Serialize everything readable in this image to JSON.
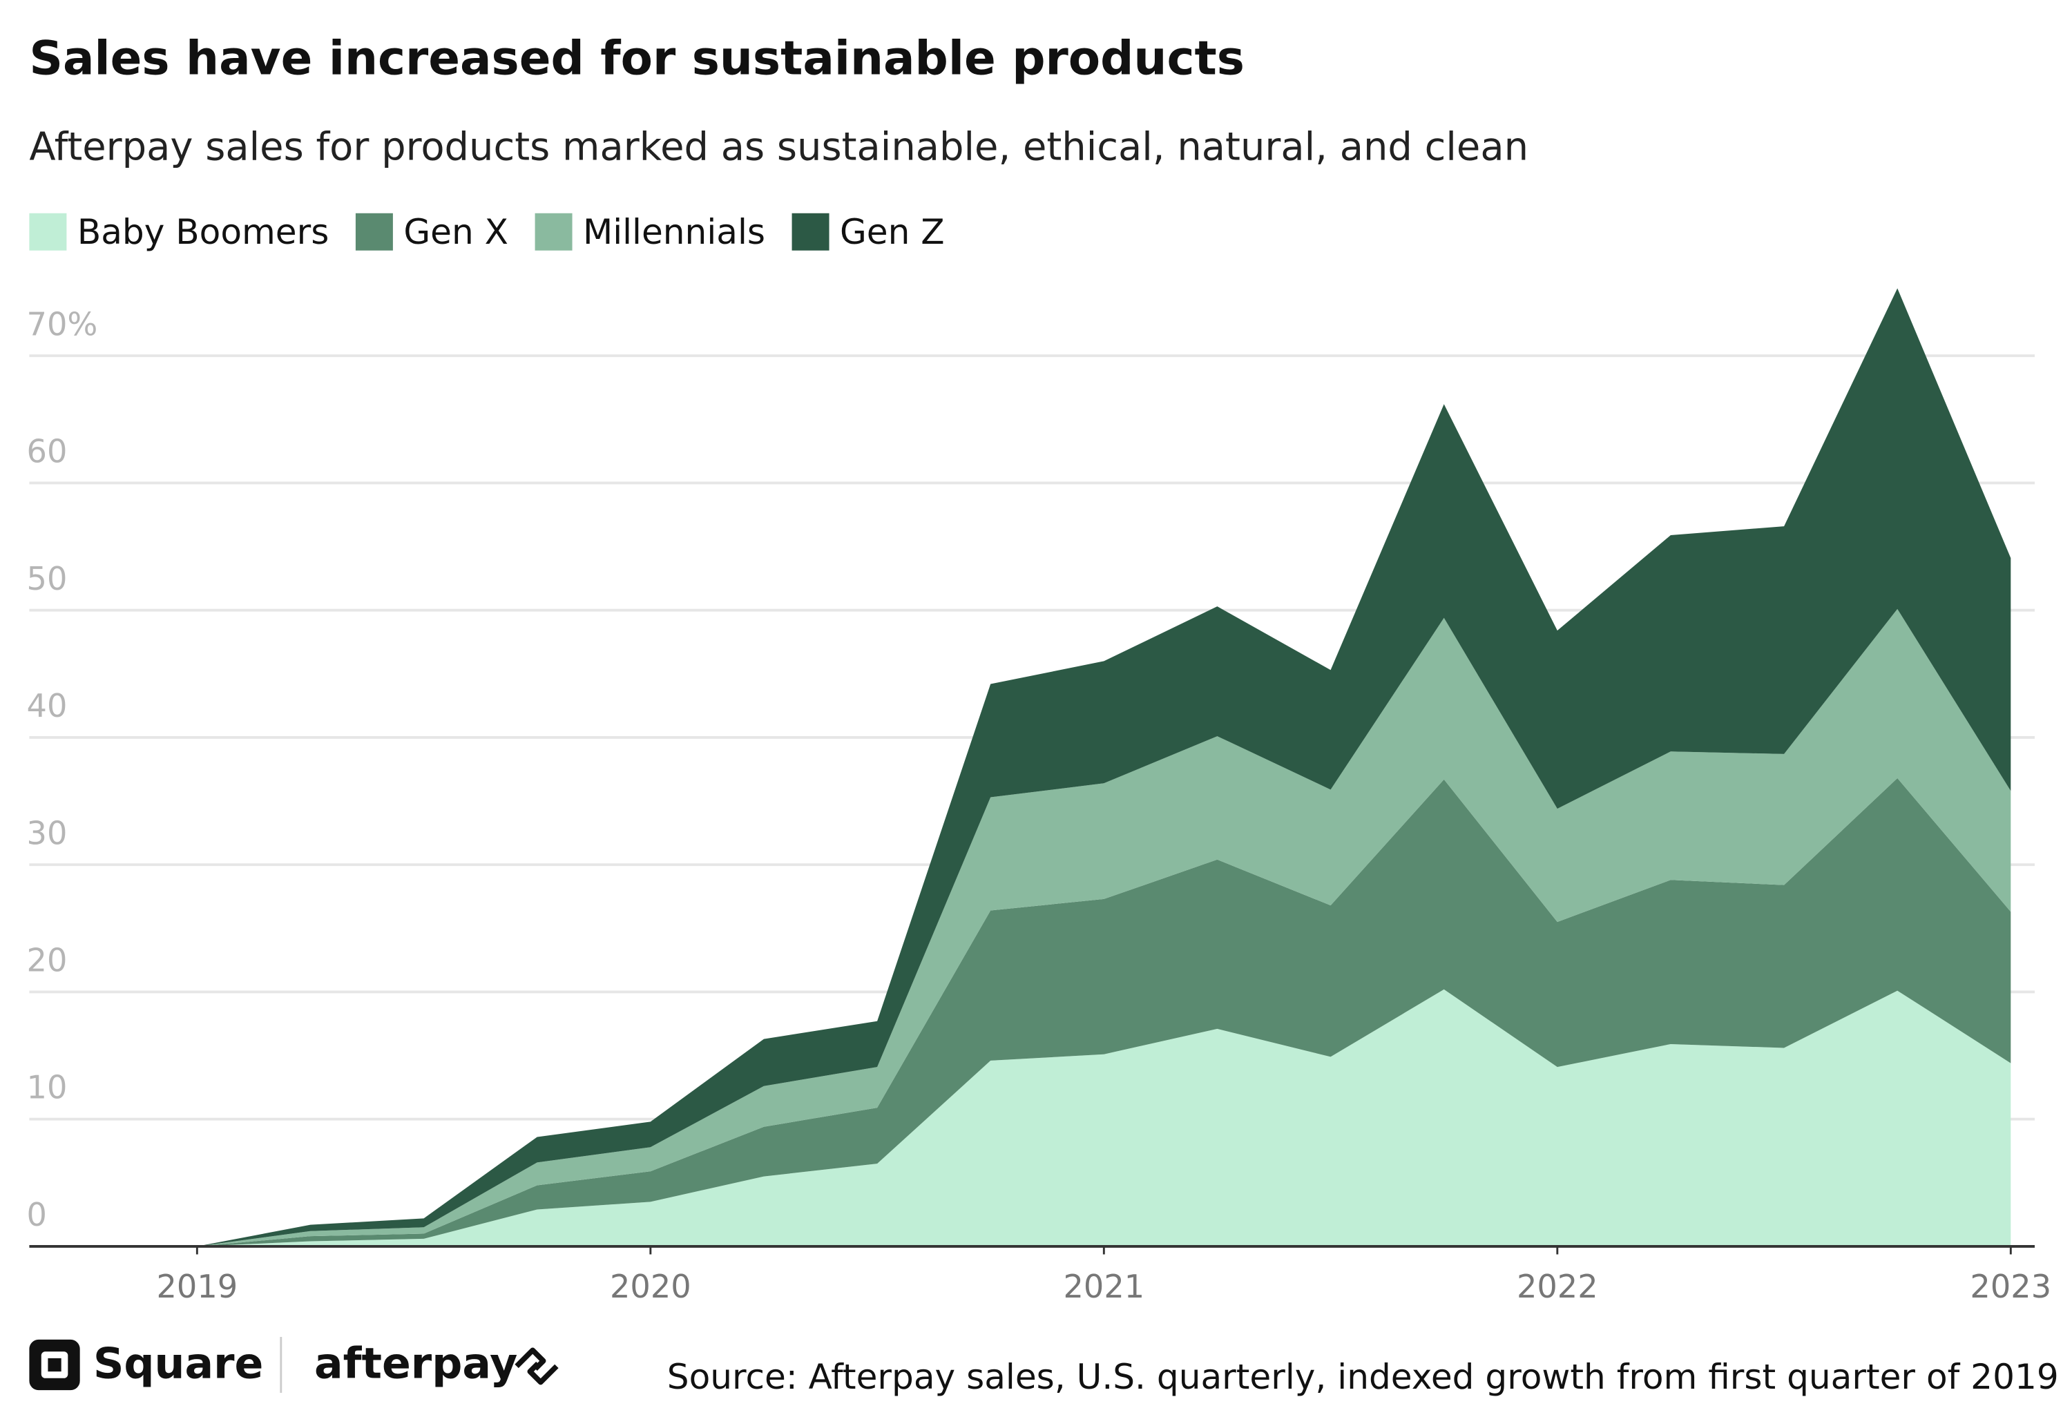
{
  "chart_data": {
    "type": "stacked_area",
    "title": "Sales have increased for sustainable products",
    "subtitle": "Afterpay sales for products marked as sustainable, ethical, natural, and clean",
    "x": [
      2019,
      2019.25,
      2019.5,
      2019.75,
      2020,
      2020.25,
      2020.5,
      2020.75,
      2021,
      2021.25,
      2021.5,
      2021.75,
      2022,
      2022.25,
      2022.5,
      2022.75,
      2023
    ],
    "series": [
      {
        "name": "Baby Boomers",
        "color": "#c0eed6",
        "values": [
          0,
          0.4,
          0.6,
          2.9,
          3.5,
          5.5,
          6.5,
          14.6,
          15.1,
          17.1,
          14.9,
          20.2,
          14.1,
          15.9,
          15.6,
          20.1,
          14.4
        ]
      },
      {
        "name": "Gen X",
        "color": "#5a8a70",
        "values": [
          0,
          0.4,
          0.4,
          1.9,
          2.4,
          3.9,
          4.4,
          11.8,
          12.2,
          13.3,
          11.9,
          16.5,
          11.4,
          12.9,
          12.8,
          16.7,
          11.9
        ]
      },
      {
        "name": "Millennials",
        "color": "#8aba9f",
        "values": [
          0,
          0.4,
          0.5,
          1.8,
          1.9,
          3.2,
          3.2,
          8.9,
          9.1,
          9.7,
          9.1,
          12.7,
          8.9,
          10.1,
          10.3,
          13.3,
          9.5
        ]
      },
      {
        "name": "Gen Z",
        "color": "#2c5945",
        "values": [
          0,
          0.5,
          0.7,
          2.0,
          2.0,
          3.7,
          3.6,
          8.9,
          9.6,
          10.2,
          9.4,
          16.8,
          14.0,
          17.0,
          17.9,
          25.2,
          18.3
        ]
      }
    ],
    "xlim": [
      2019,
      2023
    ],
    "xticks": [
      2019,
      2020,
      2021,
      2022,
      2023
    ],
    "ylim": [
      0,
      80
    ],
    "yticks": [
      0,
      10,
      20,
      30,
      40,
      50,
      60,
      {
        "value": 70,
        "label": "70%"
      }
    ],
    "grid": true,
    "legend": "top-left",
    "source": "Source: Afterpay sales, U.S. quarterly, indexed growth from first quarter of 2019",
    "logos": [
      "Square",
      "afterpay"
    ]
  }
}
